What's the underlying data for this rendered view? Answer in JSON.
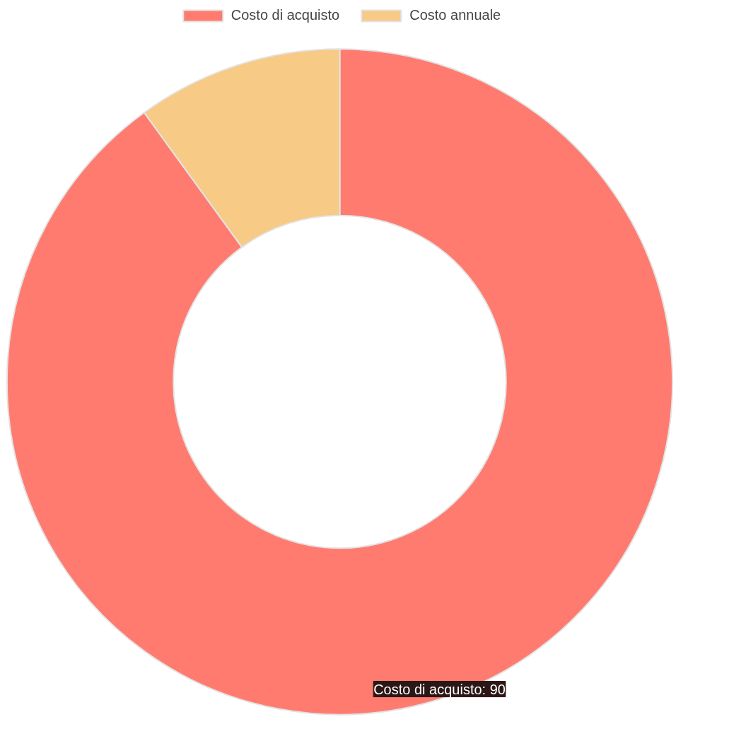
{
  "chart_data": {
    "type": "donut",
    "categories": [
      "Costo di acquisto",
      "Costo annuale"
    ],
    "values": [
      90,
      10
    ],
    "colors": [
      "#ff7b70",
      "#f7ca85"
    ],
    "value_labels": [
      "Costo di acquisto: 90",
      null
    ],
    "legend": "top"
  }
}
